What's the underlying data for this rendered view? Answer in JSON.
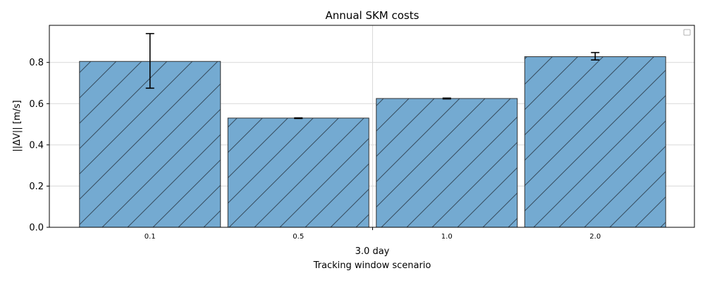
{
  "chart_data": {
    "type": "bar",
    "title": "Annual SKM costs",
    "ylabel": "||ΔV|| [m/s]",
    "group_label": "3.0 day",
    "xlabel": "Tracking window scenario",
    "categories": [
      "0.1",
      "0.5",
      "1.0",
      "2.0"
    ],
    "values": [
      0.805,
      0.53,
      0.625,
      0.828
    ],
    "error_low": [
      0.675,
      0.528,
      0.623,
      0.812
    ],
    "error_high": [
      0.94,
      0.531,
      0.627,
      0.848
    ],
    "ylim": [
      0,
      0.98
    ],
    "yticks": [
      "0.0",
      "0.2",
      "0.4",
      "0.6",
      "0.8"
    ],
    "grid": true,
    "legend": "top-right (empty)",
    "bar_color": "#74aad1",
    "bar_edge_color": "#333333",
    "hatch": "diagonal"
  }
}
